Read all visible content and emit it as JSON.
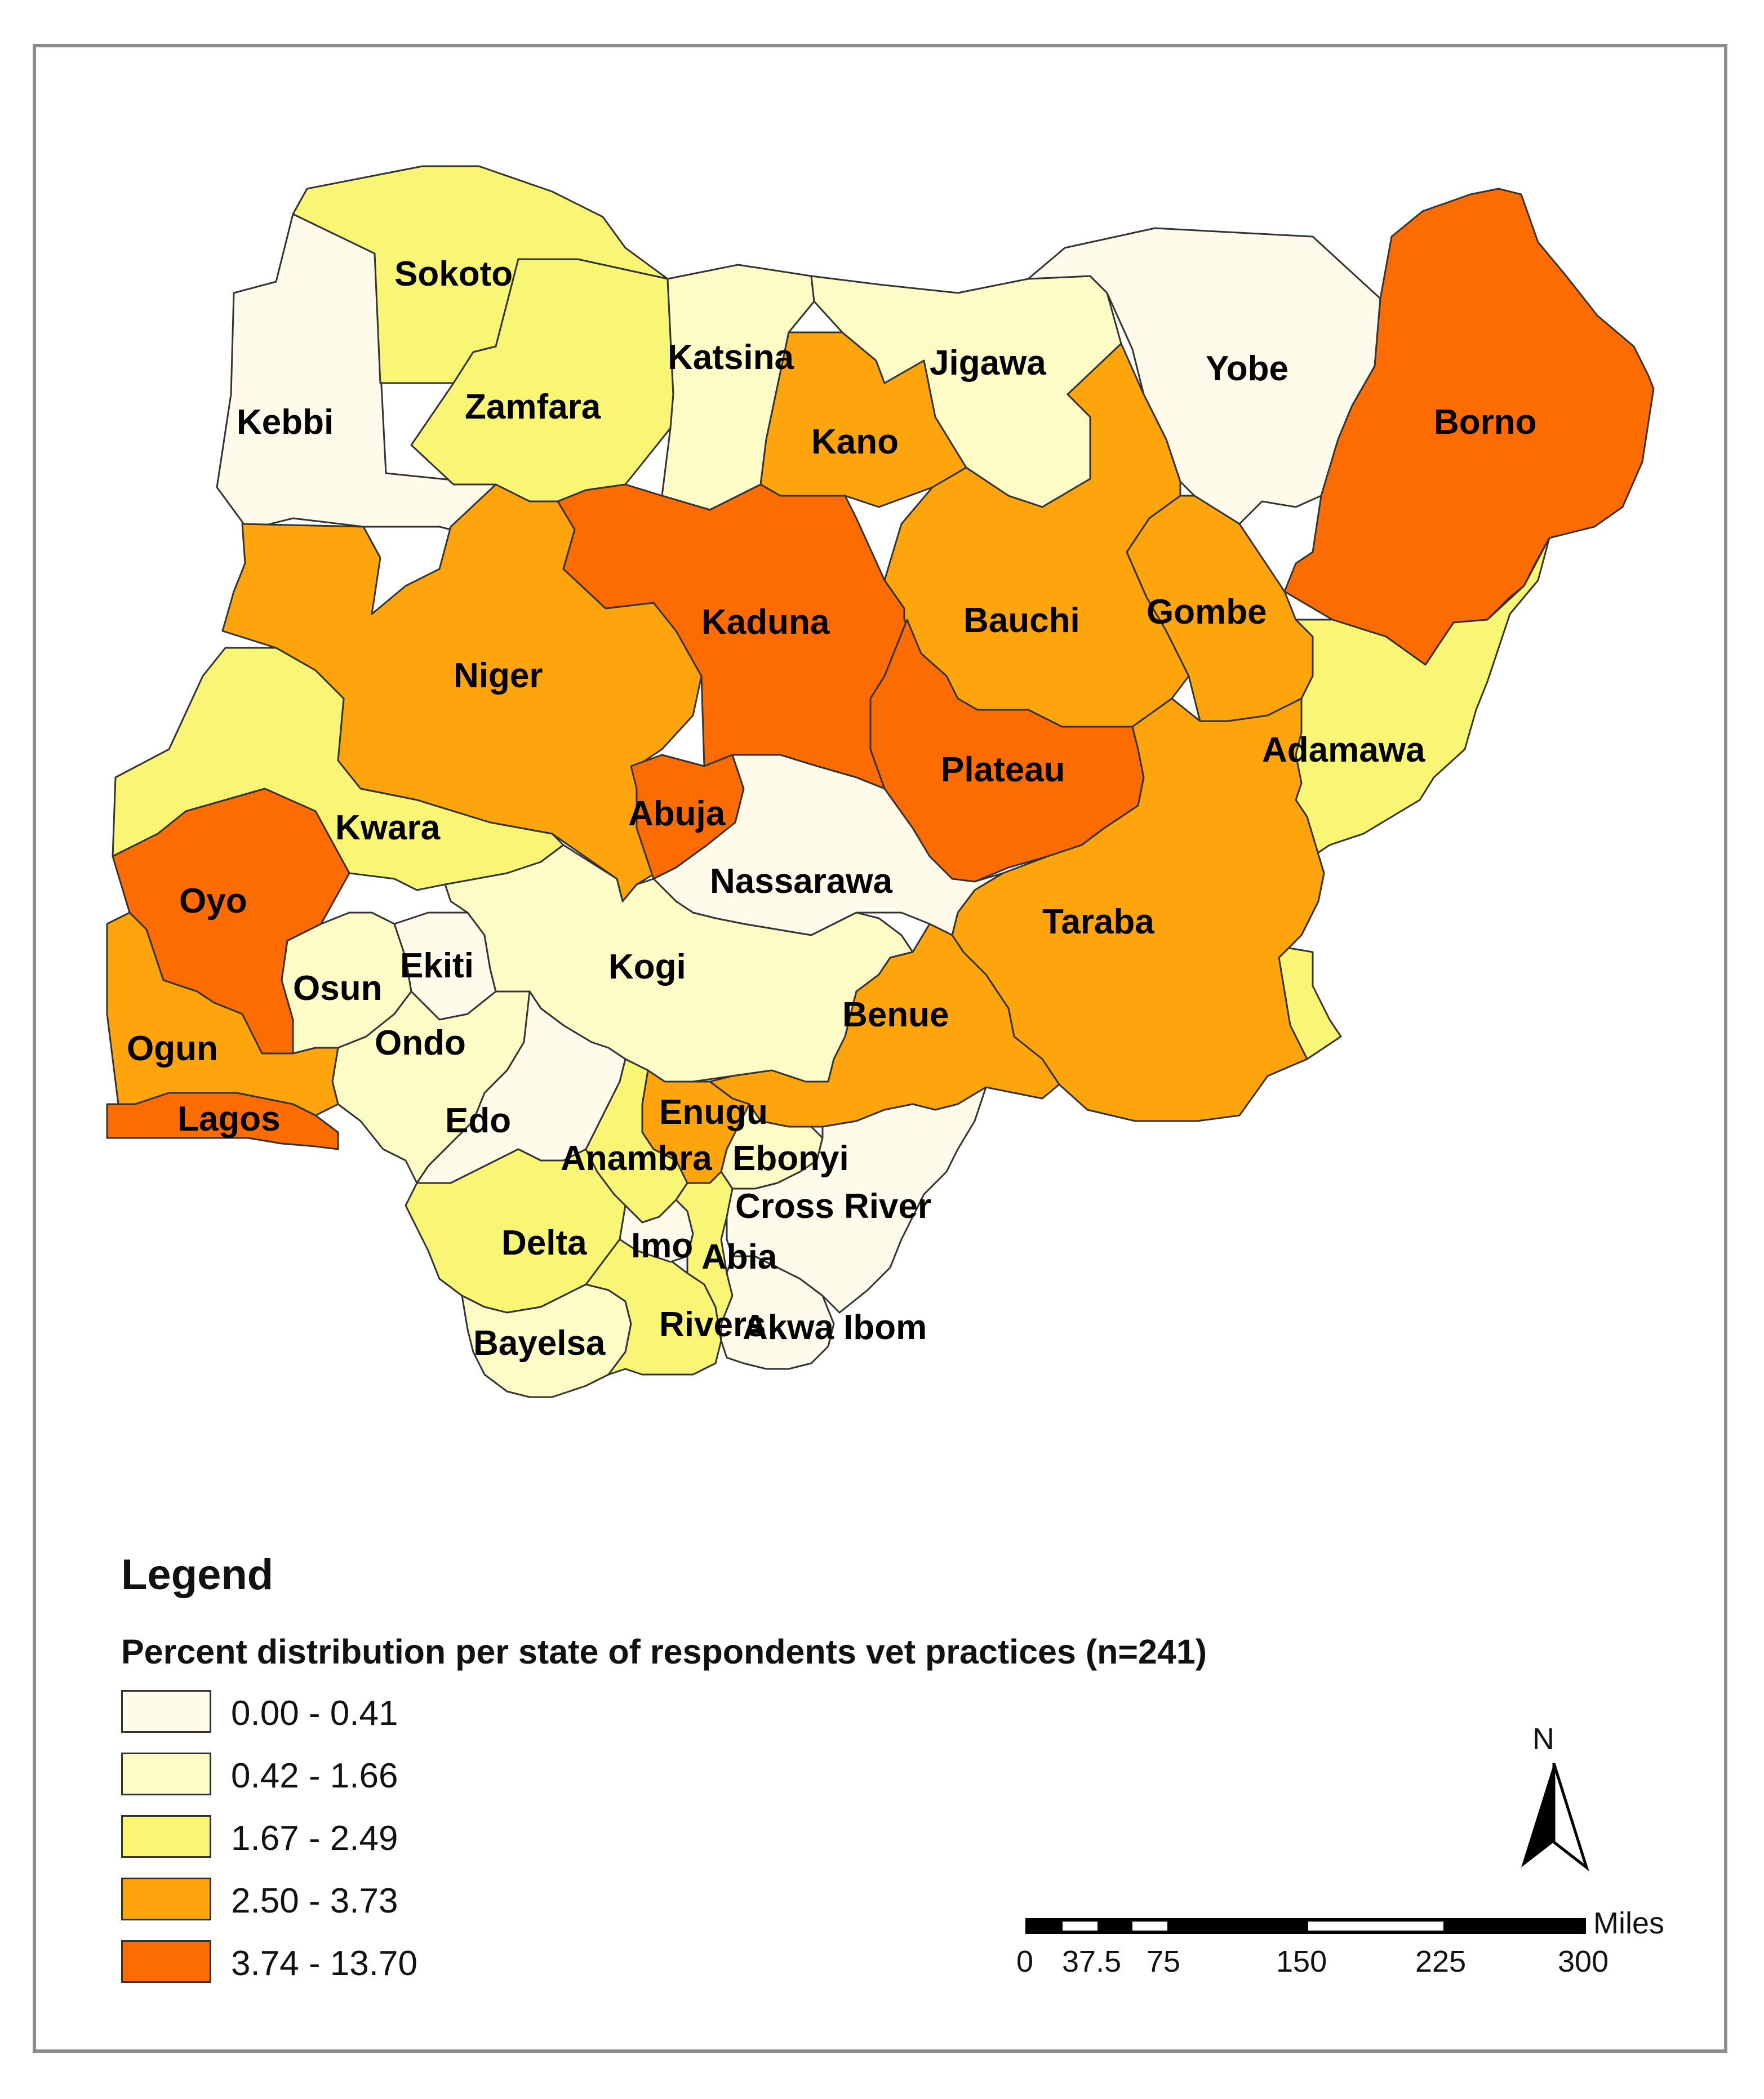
{
  "legend": {
    "title": "Legend",
    "subtitle": "Percent distribution per state of respondents vet practices (n=241)",
    "classes": [
      {
        "label": "0.00 - 0.41",
        "color": "#fffbeb"
      },
      {
        "label": "0.42 - 1.66",
        "color": "#fdfcc7"
      },
      {
        "label": "1.67 - 2.49",
        "color": "#f9f675"
      },
      {
        "label": "2.50 - 3.73",
        "color": "#fea40d"
      },
      {
        "label": "3.74 - 13.70",
        "color": "#fd6c01"
      }
    ]
  },
  "states": [
    {
      "name": "Sokoto",
      "class": 2
    },
    {
      "name": "Kebbi",
      "class": 0
    },
    {
      "name": "Zamfara",
      "class": 2
    },
    {
      "name": "Katsina",
      "class": 1
    },
    {
      "name": "Kano",
      "class": 3
    },
    {
      "name": "Jigawa",
      "class": 1
    },
    {
      "name": "Yobe",
      "class": 0
    },
    {
      "name": "Borno",
      "class": 4
    },
    {
      "name": "Kaduna",
      "class": 4
    },
    {
      "name": "Bauchi",
      "class": 3
    },
    {
      "name": "Gombe",
      "class": 3
    },
    {
      "name": "Niger",
      "class": 3
    },
    {
      "name": "Adamawa",
      "class": 2
    },
    {
      "name": "Plateau",
      "class": 4
    },
    {
      "name": "Abuja",
      "class": 4
    },
    {
      "name": "Kwara",
      "class": 2
    },
    {
      "name": "Oyo",
      "class": 4
    },
    {
      "name": "Nassarawa",
      "class": 0
    },
    {
      "name": "Taraba",
      "class": 3
    },
    {
      "name": "Kogi",
      "class": 1
    },
    {
      "name": "Osun",
      "class": 1
    },
    {
      "name": "Ekiti",
      "class": 0
    },
    {
      "name": "Ondo",
      "class": 1
    },
    {
      "name": "Ogun",
      "class": 3
    },
    {
      "name": "Benue",
      "class": 3
    },
    {
      "name": "Lagos",
      "class": 4
    },
    {
      "name": "Edo",
      "class": 0
    },
    {
      "name": "Enugu",
      "class": 3
    },
    {
      "name": "Anambra",
      "class": 2
    },
    {
      "name": "Ebonyi",
      "class": 1
    },
    {
      "name": "Cross River",
      "class": 0
    },
    {
      "name": "Delta",
      "class": 2
    },
    {
      "name": "Imo",
      "class": 0
    },
    {
      "name": "Abia",
      "class": 2
    },
    {
      "name": "Bayelsa",
      "class": 1
    },
    {
      "name": "Rivers",
      "class": 2
    },
    {
      "name": "Akwa Ibom",
      "class": 0
    }
  ],
  "north_arrow": {
    "label": "N"
  },
  "scale_bar": {
    "unit": "Miles",
    "ticks": [
      "0",
      "37.5",
      "75",
      "150",
      "225",
      "300"
    ]
  }
}
